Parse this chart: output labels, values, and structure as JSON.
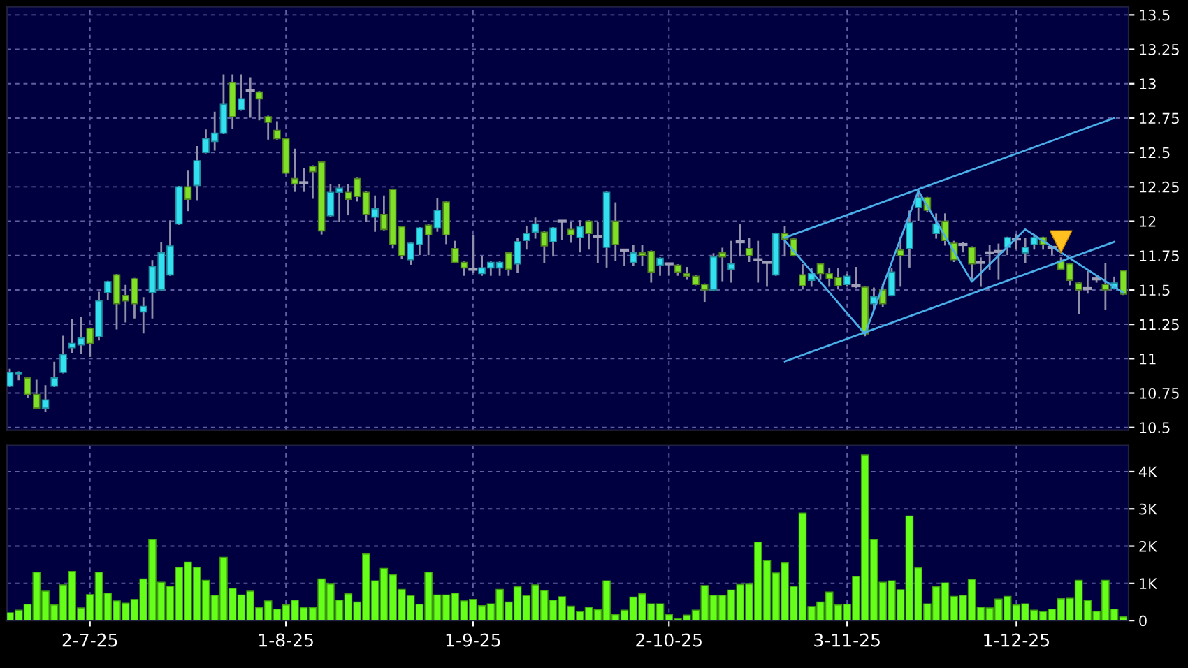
{
  "chart_data": [
    {
      "type": "candlestick",
      "categories": [
        null,
        null,
        null,
        null,
        null,
        null,
        null,
        null,
        null,
        null,
        null,
        null,
        null,
        null,
        null,
        null,
        null,
        null,
        null,
        null,
        null,
        null,
        null,
        null,
        null,
        null,
        null,
        null,
        null,
        null,
        null,
        null,
        null,
        null,
        null,
        null,
        null,
        null,
        null,
        null,
        null,
        null,
        null,
        null,
        null,
        null,
        null,
        null,
        null,
        null,
        null,
        null,
        null,
        null,
        null,
        null,
        null,
        null,
        null,
        null,
        null,
        null,
        null,
        null,
        null,
        null,
        null,
        null,
        null,
        null,
        null,
        null,
        null,
        null,
        null,
        null,
        null,
        null,
        null,
        null,
        null,
        null,
        null,
        null,
        null,
        null,
        null,
        null,
        null,
        null,
        null,
        null,
        null,
        null,
        null,
        null,
        null,
        null,
        null,
        null,
        null,
        null,
        null,
        null,
        null,
        null,
        null,
        null,
        null,
        null,
        null,
        null,
        null,
        null,
        null,
        null,
        null,
        null,
        null,
        null,
        null,
        null,
        null,
        null,
        null,
        null
      ],
      "ohlc": [
        [
          10.8,
          10.92,
          10.8,
          10.9
        ],
        [
          10.89,
          10.9,
          10.85,
          10.9
        ],
        [
          10.86,
          10.86,
          10.72,
          10.74
        ],
        [
          10.74,
          10.84,
          10.64,
          10.64
        ],
        [
          10.64,
          10.8,
          10.62,
          10.7
        ],
        [
          10.8,
          10.97,
          10.8,
          10.86
        ],
        [
          10.9,
          11.16,
          10.9,
          11.03
        ],
        [
          11.08,
          11.28,
          11.05,
          11.11
        ],
        [
          11.1,
          11.3,
          11.04,
          11.15
        ],
        [
          11.22,
          11.22,
          11.02,
          11.11
        ],
        [
          11.16,
          11.48,
          11.14,
          11.42
        ],
        [
          11.48,
          11.56,
          11.43,
          11.56
        ],
        [
          11.61,
          11.61,
          11.22,
          11.4
        ],
        [
          11.46,
          11.53,
          11.27,
          11.42
        ],
        [
          11.58,
          11.58,
          11.3,
          11.4
        ],
        [
          11.34,
          11.44,
          11.19,
          11.38
        ],
        [
          11.48,
          11.71,
          11.3,
          11.67
        ],
        [
          11.5,
          11.84,
          11.5,
          11.77
        ],
        [
          11.61,
          12.0,
          11.61,
          11.82
        ],
        [
          11.98,
          12.25,
          11.98,
          12.25
        ],
        [
          12.25,
          12.36,
          12.08,
          12.16
        ],
        [
          12.26,
          12.54,
          12.16,
          12.44
        ],
        [
          12.5,
          12.66,
          12.5,
          12.6
        ],
        [
          12.58,
          12.79,
          12.52,
          12.64
        ],
        [
          12.64,
          13.06,
          12.64,
          12.85
        ],
        [
          13.01,
          13.06,
          12.68,
          12.76
        ],
        [
          12.81,
          13.06,
          12.81,
          12.89
        ],
        [
          12.95,
          13.04,
          12.76,
          12.95
        ],
        [
          12.94,
          12.94,
          12.74,
          12.89
        ],
        [
          12.76,
          12.76,
          12.6,
          12.72
        ],
        [
          12.66,
          12.72,
          12.6,
          12.6
        ],
        [
          12.6,
          12.6,
          12.35,
          12.35
        ],
        [
          12.31,
          12.52,
          12.22,
          12.27
        ],
        [
          12.28,
          12.38,
          12.22,
          12.28
        ],
        [
          12.4,
          12.4,
          12.17,
          12.36
        ],
        [
          12.43,
          12.43,
          11.91,
          11.93
        ],
        [
          12.04,
          12.26,
          12.04,
          12.21
        ],
        [
          12.21,
          12.26,
          12.0,
          12.24
        ],
        [
          12.21,
          12.26,
          12.05,
          12.16
        ],
        [
          12.31,
          12.31,
          12.15,
          12.18
        ],
        [
          12.21,
          12.21,
          12.0,
          12.05
        ],
        [
          12.03,
          12.18,
          11.93,
          12.09
        ],
        [
          12.05,
          12.18,
          11.94,
          11.94
        ],
        [
          12.23,
          12.23,
          11.81,
          11.83
        ],
        [
          11.96,
          11.96,
          11.73,
          11.75
        ],
        [
          11.72,
          11.84,
          11.69,
          11.84
        ],
        [
          11.83,
          11.95,
          11.76,
          11.95
        ],
        [
          11.97,
          11.97,
          11.76,
          11.9
        ],
        [
          11.95,
          12.16,
          11.93,
          12.08
        ],
        [
          12.14,
          12.14,
          11.84,
          11.9
        ],
        [
          11.8,
          11.85,
          11.7,
          11.7
        ],
        [
          11.7,
          11.7,
          11.61,
          11.66
        ],
        [
          11.65,
          11.89,
          11.63,
          11.65
        ],
        [
          11.62,
          11.74,
          11.61,
          11.66
        ],
        [
          11.66,
          11.7,
          11.61,
          11.7
        ],
        [
          11.66,
          11.7,
          11.61,
          11.7
        ],
        [
          11.77,
          11.77,
          11.61,
          11.65
        ],
        [
          11.69,
          11.87,
          11.63,
          11.85
        ],
        [
          11.86,
          11.96,
          11.8,
          11.91
        ],
        [
          11.92,
          12.02,
          11.88,
          11.98
        ],
        [
          11.92,
          11.92,
          11.7,
          11.82
        ],
        [
          11.85,
          11.95,
          11.75,
          11.95
        ],
        [
          12.0,
          12.0,
          11.87,
          12.0
        ],
        [
          11.94,
          11.99,
          11.85,
          11.9
        ],
        [
          11.88,
          12.0,
          11.78,
          11.96
        ],
        [
          12.0,
          12.0,
          11.8,
          11.91
        ],
        [
          11.89,
          11.99,
          11.7,
          11.89
        ],
        [
          11.81,
          12.21,
          11.67,
          12.21
        ],
        [
          12.0,
          12.13,
          11.72,
          11.83
        ],
        [
          11.79,
          11.79,
          11.68,
          11.79
        ],
        [
          11.7,
          11.82,
          11.68,
          11.77
        ],
        [
          11.77,
          11.82,
          11.68,
          11.75
        ],
        [
          11.78,
          11.78,
          11.56,
          11.63
        ],
        [
          11.68,
          11.73,
          11.61,
          11.73
        ],
        [
          11.69,
          11.69,
          11.61,
          11.69
        ],
        [
          11.68,
          11.68,
          11.61,
          11.63
        ],
        [
          11.62,
          11.66,
          11.58,
          11.6
        ],
        [
          11.6,
          11.6,
          11.54,
          11.54
        ],
        [
          11.54,
          11.54,
          11.42,
          11.5
        ],
        [
          11.5,
          11.76,
          11.5,
          11.74
        ],
        [
          11.77,
          11.8,
          11.57,
          11.74
        ],
        [
          11.65,
          11.85,
          11.56,
          11.69
        ],
        [
          11.85,
          11.97,
          11.75,
          11.85
        ],
        [
          11.8,
          11.87,
          11.71,
          11.75
        ],
        [
          11.72,
          11.85,
          11.56,
          11.72
        ],
        [
          11.7,
          11.7,
          11.53,
          11.7
        ],
        [
          11.61,
          11.91,
          11.61,
          11.91
        ],
        [
          11.91,
          11.96,
          11.75,
          11.87
        ],
        [
          11.87,
          11.87,
          11.75,
          11.75
        ],
        [
          11.61,
          11.68,
          11.51,
          11.53
        ],
        [
          11.57,
          11.65,
          11.53,
          11.62
        ],
        [
          11.69,
          11.69,
          11.58,
          11.62
        ],
        [
          11.62,
          11.65,
          11.53,
          11.58
        ],
        [
          11.59,
          11.65,
          11.51,
          11.53
        ],
        [
          11.54,
          11.61,
          11.53,
          11.6
        ],
        [
          11.53,
          11.66,
          11.52,
          11.53
        ],
        [
          11.52,
          11.52,
          11.17,
          11.18
        ],
        [
          11.4,
          11.51,
          11.36,
          11.45
        ],
        [
          11.5,
          11.54,
          11.38,
          11.4
        ],
        [
          11.46,
          11.65,
          11.46,
          11.63
        ],
        [
          11.79,
          11.88,
          11.53,
          11.75
        ],
        [
          11.8,
          12.07,
          11.67,
          11.99
        ],
        [
          12.1,
          12.22,
          12.01,
          12.17
        ],
        [
          12.17,
          12.17,
          12.07,
          12.08
        ],
        [
          11.91,
          12.05,
          11.88,
          11.98
        ],
        [
          12.0,
          12.05,
          11.83,
          11.86
        ],
        [
          11.84,
          11.85,
          11.71,
          11.72
        ],
        [
          11.83,
          11.84,
          11.78,
          11.83
        ],
        [
          11.81,
          11.81,
          11.58,
          11.69
        ],
        [
          11.7,
          11.73,
          11.53,
          11.7
        ],
        [
          11.77,
          11.82,
          11.65,
          11.77
        ],
        [
          11.78,
          11.83,
          11.58,
          11.78
        ],
        [
          11.81,
          11.88,
          11.76,
          11.88
        ],
        [
          11.87,
          11.9,
          11.8,
          11.87
        ],
        [
          11.77,
          11.87,
          11.7,
          11.81
        ],
        [
          11.83,
          11.9,
          11.8,
          11.88
        ],
        [
          11.88,
          11.88,
          11.8,
          11.83
        ],
        [
          11.81,
          11.81,
          11.76,
          11.81
        ],
        [
          11.71,
          11.73,
          11.65,
          11.65
        ],
        [
          11.69,
          11.69,
          11.54,
          11.57
        ],
        [
          11.55,
          11.55,
          11.33,
          11.5
        ],
        [
          11.51,
          11.63,
          11.48,
          11.51
        ],
        [
          11.58,
          11.6,
          11.56,
          11.58
        ],
        [
          11.54,
          11.69,
          11.36,
          11.5
        ],
        [
          11.51,
          11.59,
          11.51,
          11.55
        ],
        [
          11.64,
          11.64,
          11.47,
          11.47
        ]
      ],
      "colors": [
        "#33e0f0",
        "#33e0f0",
        "#80e028",
        "#80e028",
        "#33e0f0",
        "#33e0f0",
        "#33e0f0",
        "#33e0f0",
        "#33e0f0",
        "#80e028",
        "#33e0f0",
        "#33e0f0",
        "#80e028",
        "#80e028",
        "#80e028",
        "#33e0f0",
        "#33e0f0",
        "#33e0f0",
        "#33e0f0",
        "#33e0f0",
        "#80e028",
        "#33e0f0",
        "#33e0f0",
        "#33e0f0",
        "#33e0f0",
        "#80e028",
        "#33e0f0",
        "#a0a0b8",
        "#80e028",
        "#80e028",
        "#80e028",
        "#80e028",
        "#80e028",
        "#a0a0b8",
        "#80e028",
        "#80e028",
        "#33e0f0",
        "#33e0f0",
        "#80e028",
        "#80e028",
        "#80e028",
        "#33e0f0",
        "#80e028",
        "#80e028",
        "#80e028",
        "#33e0f0",
        "#33e0f0",
        "#80e028",
        "#33e0f0",
        "#80e028",
        "#80e028",
        "#80e028",
        "#a0a0b8",
        "#33e0f0",
        "#33e0f0",
        "#33e0f0",
        "#80e028",
        "#33e0f0",
        "#33e0f0",
        "#33e0f0",
        "#80e028",
        "#33e0f0",
        "#a0a0b8",
        "#80e028",
        "#33e0f0",
        "#80e028",
        "#a0a0b8",
        "#33e0f0",
        "#80e028",
        "#a0a0b8",
        "#33e0f0",
        "#80e028",
        "#80e028",
        "#33e0f0",
        "#a0a0b8",
        "#80e028",
        "#80e028",
        "#80e028",
        "#80e028",
        "#33e0f0",
        "#80e028",
        "#33e0f0",
        "#a0a0b8",
        "#80e028",
        "#a0a0b8",
        "#a0a0b8",
        "#33e0f0",
        "#80e028",
        "#80e028",
        "#80e028",
        "#33e0f0",
        "#80e028",
        "#80e028",
        "#80e028",
        "#33e0f0",
        "#a0a0b8",
        "#80e028",
        "#33e0f0",
        "#80e028",
        "#33e0f0",
        "#80e028",
        "#33e0f0",
        "#33e0f0",
        "#80e028",
        "#33e0f0",
        "#80e028",
        "#80e028",
        "#a0a0b8",
        "#80e028",
        "#a0a0b8",
        "#a0a0b8",
        "#a0a0b8",
        "#33e0f0",
        "#a0a0b8",
        "#33e0f0",
        "#33e0f0",
        "#80e028",
        "#a0a0b8",
        "#80e028",
        "#80e028",
        "#80e028",
        "#a0a0b8",
        "#a0a0b8",
        "#80e028",
        "#33e0f0",
        "#80e028"
      ],
      "series": [
        {
          "type": "line",
          "color": "#4aaee8",
          "values": [
            null,
            null,
            null,
            null,
            null,
            null,
            null,
            null,
            null,
            null,
            null,
            null,
            null,
            null,
            null,
            null,
            null,
            null,
            null,
            null,
            null,
            null,
            null,
            null,
            null,
            null,
            null,
            null,
            null,
            null,
            null,
            null,
            null,
            null,
            null,
            null,
            null,
            null,
            null,
            null,
            null,
            null,
            null,
            null,
            null,
            null,
            null,
            null,
            null,
            null,
            null,
            null,
            null,
            null,
            null,
            null,
            null,
            null,
            null,
            null,
            null,
            null,
            null,
            null,
            null,
            null,
            null,
            null,
            null,
            null,
            null,
            null,
            null,
            null,
            null,
            null,
            null,
            null,
            null,
            null,
            null,
            null,
            null,
            null,
            null,
            null,
            null,
            11.88,
            null,
            null,
            null,
            null,
            null,
            null,
            null,
            null,
            null,
            null,
            null,
            null,
            null,
            null,
            null,
            null,
            null,
            null,
            null,
            null,
            null,
            null,
            null,
            null,
            null,
            null,
            null,
            null,
            null,
            null,
            null,
            null,
            null,
            null,
            null,
            null,
            12.75,
            null
          ]
        },
        {
          "type": "line",
          "color": "#4aaee8",
          "values": [
            null,
            null,
            null,
            null,
            null,
            null,
            null,
            null,
            null,
            null,
            null,
            null,
            null,
            null,
            null,
            null,
            null,
            null,
            null,
            null,
            null,
            null,
            null,
            null,
            null,
            null,
            null,
            null,
            null,
            null,
            null,
            null,
            null,
            null,
            null,
            null,
            null,
            null,
            null,
            null,
            null,
            null,
            null,
            null,
            null,
            null,
            null,
            null,
            null,
            null,
            null,
            null,
            null,
            null,
            null,
            null,
            null,
            null,
            null,
            null,
            null,
            null,
            null,
            null,
            null,
            null,
            null,
            null,
            null,
            null,
            null,
            null,
            null,
            null,
            null,
            null,
            null,
            null,
            null,
            null,
            null,
            null,
            null,
            null,
            null,
            null,
            null,
            10.98,
            null,
            null,
            null,
            null,
            null,
            null,
            null,
            null,
            null,
            null,
            null,
            null,
            null,
            null,
            null,
            null,
            null,
            null,
            null,
            null,
            null,
            null,
            null,
            null,
            null,
            null,
            null,
            null,
            null,
            null,
            null,
            null,
            null,
            null,
            null,
            null,
            11.85,
            null
          ]
        },
        {
          "type": "line",
          "color": "#4aaee8",
          "values": [
            null,
            null,
            null,
            null,
            null,
            null,
            null,
            null,
            null,
            null,
            null,
            null,
            null,
            null,
            null,
            null,
            null,
            null,
            null,
            null,
            null,
            null,
            null,
            null,
            null,
            null,
            null,
            null,
            null,
            null,
            null,
            null,
            null,
            null,
            null,
            null,
            null,
            null,
            null,
            null,
            null,
            null,
            null,
            null,
            null,
            null,
            null,
            null,
            null,
            null,
            null,
            null,
            null,
            null,
            null,
            null,
            null,
            null,
            null,
            null,
            null,
            null,
            null,
            null,
            null,
            null,
            null,
            null,
            null,
            null,
            null,
            null,
            null,
            null,
            null,
            null,
            null,
            null,
            null,
            null,
            null,
            null,
            null,
            null,
            null,
            null,
            null,
            11.86,
            null,
            null,
            null,
            null,
            null,
            null,
            null,
            null,
            11.18,
            null,
            null,
            null,
            null,
            null,
            12.22,
            null,
            null,
            null,
            null,
            null,
            11.56,
            null,
            null,
            null,
            null,
            null,
            11.94,
            null,
            null,
            null,
            null,
            null,
            null,
            null,
            null,
            null,
            null,
            11.48
          ]
        },
        {
          "type": "scatter",
          "color": "#ffc020",
          "marker": "triangle",
          "values": [
            null,
            null,
            null,
            null,
            null,
            null,
            null,
            null,
            null,
            null,
            null,
            null,
            null,
            null,
            null,
            null,
            null,
            null,
            null,
            null,
            null,
            null,
            null,
            null,
            null,
            null,
            null,
            null,
            null,
            null,
            null,
            null,
            null,
            null,
            null,
            null,
            null,
            null,
            null,
            null,
            null,
            null,
            null,
            null,
            null,
            null,
            null,
            null,
            null,
            null,
            null,
            null,
            null,
            null,
            null,
            null,
            null,
            null,
            null,
            null,
            null,
            null,
            null,
            null,
            null,
            null,
            null,
            null,
            null,
            null,
            null,
            null,
            null,
            null,
            null,
            null,
            null,
            null,
            null,
            null,
            null,
            null,
            null,
            null,
            null,
            null,
            null,
            null,
            null,
            null,
            null,
            null,
            null,
            null,
            null,
            null,
            null,
            null,
            null,
            null,
            null,
            null,
            null,
            null,
            null,
            null,
            null,
            null,
            null,
            null,
            null,
            null,
            null,
            null,
            null,
            null,
            null,
            null,
            11.85,
            null,
            null,
            null,
            null,
            null,
            null,
            null
          ]
        }
      ],
      "ylim": [
        10.48,
        13.56
      ],
      "yticks": [
        10.5,
        10.75,
        11,
        11.25,
        11.5,
        11.75,
        12,
        12.25,
        12.5,
        12.75,
        13,
        13.25,
        13.5
      ],
      "tick_labels": "y",
      "grid": true
    },
    {
      "type": "bar",
      "color": "#66ff1a",
      "categories": [
        null,
        null,
        null,
        null,
        null,
        null,
        null,
        null,
        null,
        "2-7-25",
        null,
        null,
        null,
        null,
        null,
        null,
        null,
        null,
        null,
        null,
        null,
        null,
        null,
        null,
        null,
        null,
        null,
        null,
        null,
        null,
        null,
        "1-8-25",
        null,
        null,
        null,
        null,
        null,
        null,
        null,
        null,
        null,
        null,
        null,
        null,
        null,
        null,
        null,
        null,
        null,
        null,
        null,
        null,
        "1-9-25",
        null,
        null,
        null,
        null,
        null,
        null,
        null,
        null,
        null,
        null,
        null,
        null,
        null,
        null,
        null,
        null,
        null,
        null,
        null,
        null,
        null,
        "2-10-25",
        null,
        null,
        null,
        null,
        null,
        null,
        null,
        null,
        null,
        null,
        null,
        null,
        null,
        null,
        null,
        null,
        null,
        null,
        null,
        "3-11-25",
        null,
        null,
        null,
        null,
        null,
        null,
        null,
        null,
        null,
        null,
        null,
        null,
        null,
        null,
        null,
        null,
        null,
        null,
        "1-12-25",
        null,
        null,
        null,
        null,
        null,
        null,
        null,
        null,
        null,
        null,
        null,
        null
      ],
      "values": [
        0.21,
        0.28,
        0.44,
        1.3,
        0.79,
        0.42,
        0.96,
        1.32,
        0.34,
        0.7,
        1.3,
        0.74,
        0.53,
        0.47,
        0.57,
        1.12,
        2.18,
        1.03,
        0.92,
        1.43,
        1.57,
        1.43,
        1.08,
        0.68,
        1.7,
        0.87,
        0.69,
        0.79,
        0.35,
        0.53,
        0.31,
        0.42,
        0.55,
        0.35,
        0.35,
        1.12,
        0.98,
        0.55,
        0.72,
        0.5,
        1.79,
        1.07,
        1.4,
        1.23,
        0.84,
        0.67,
        0.44,
        1.3,
        0.69,
        0.69,
        0.74,
        0.53,
        0.57,
        0.4,
        0.45,
        0.84,
        0.5,
        0.91,
        0.67,
        0.96,
        0.81,
        0.55,
        0.64,
        0.39,
        0.24,
        0.36,
        0.29,
        1.07,
        0.16,
        0.28,
        0.63,
        0.72,
        0.45,
        0.45,
        0.16,
        0.05,
        0.15,
        0.28,
        0.94,
        0.68,
        0.68,
        0.82,
        0.97,
        0.98,
        2.11,
        1.61,
        1.28,
        1.55,
        0.92,
        2.89,
        0.38,
        0.5,
        0.77,
        0.42,
        0.44,
        1.19,
        4.45,
        2.18,
        1.03,
        1.07,
        0.83,
        2.81,
        1.42,
        0.45,
        0.91,
        1.01,
        0.65,
        0.68,
        1.11,
        0.36,
        0.34,
        0.58,
        0.65,
        0.42,
        0.45,
        0.28,
        0.24,
        0.31,
        0.59,
        0.6,
        1.08,
        0.54,
        0.25,
        1.08,
        0.31,
        0.1
      ],
      "ylim": [
        0,
        4.7
      ],
      "yticks": [
        0,
        {
          "value": 1,
          "label": "1K"
        },
        {
          "value": 2,
          "label": "2K"
        },
        {
          "value": 3,
          "label": "3K"
        },
        {
          "value": 4,
          "label": "4K"
        }
      ],
      "grid": true
    }
  ]
}
